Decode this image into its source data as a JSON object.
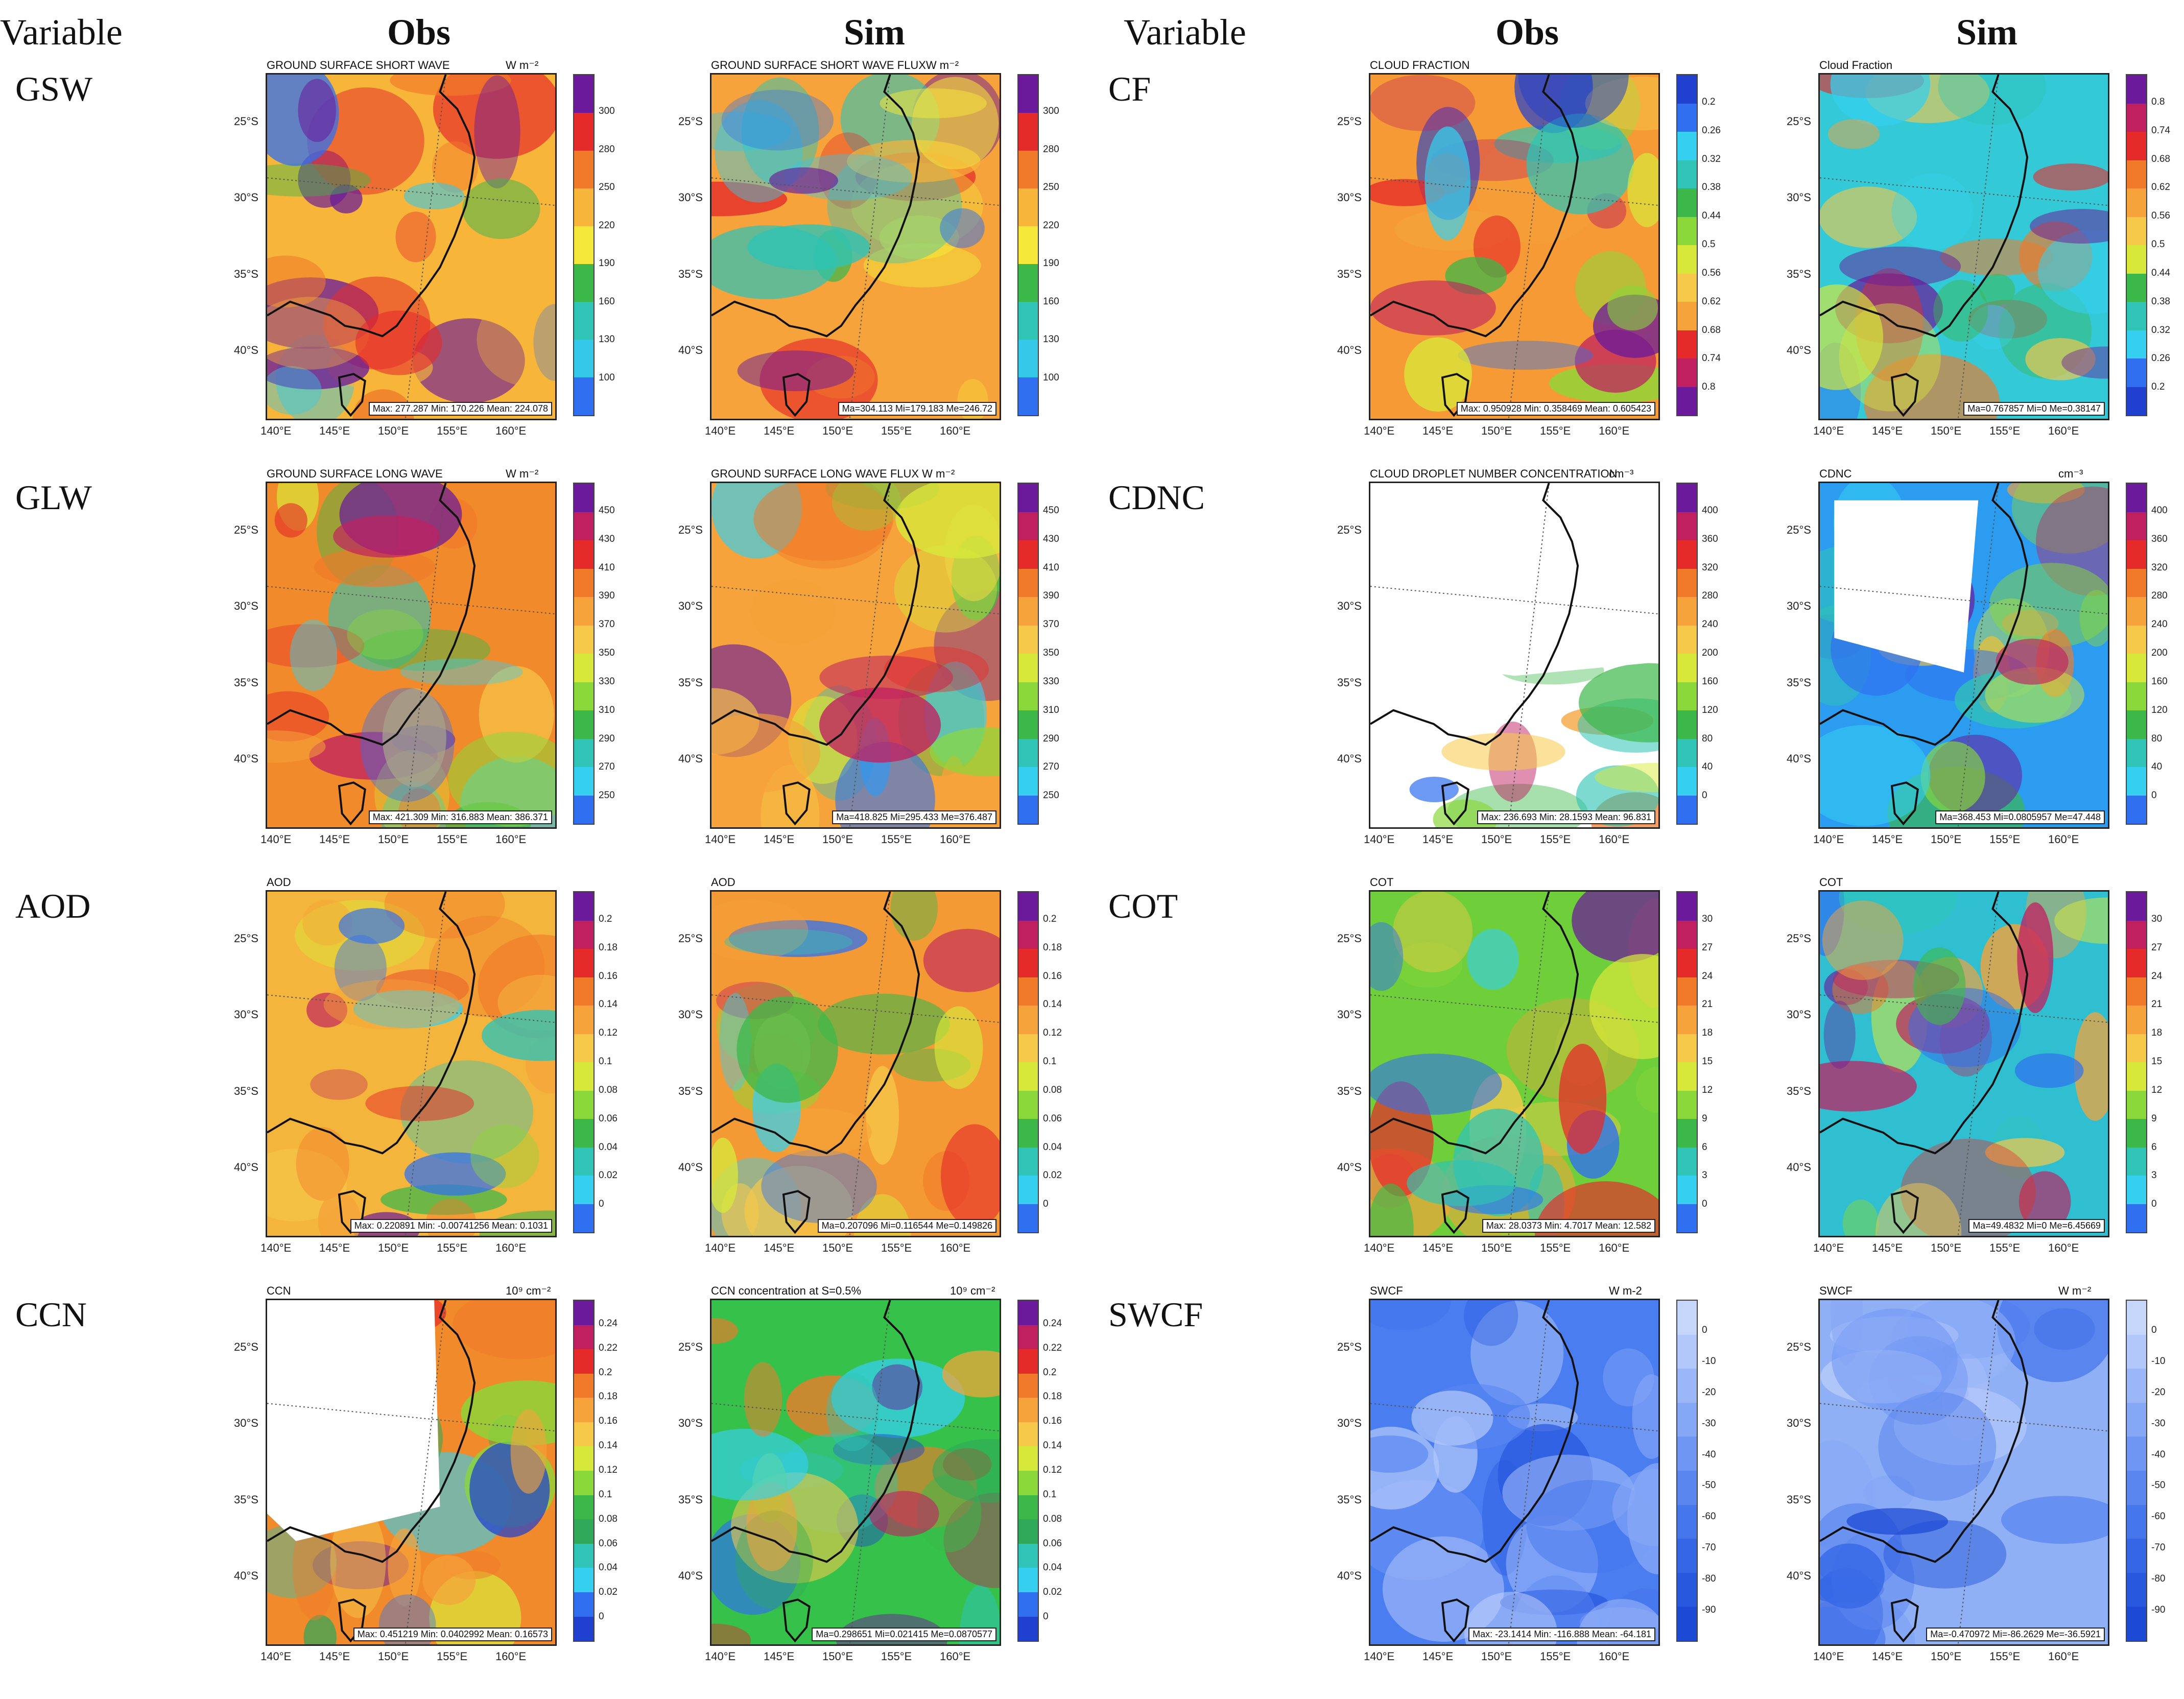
{
  "header": {
    "variable_left": "Variable",
    "obs_left": "Obs",
    "sim_left": "Sim",
    "variable_right": "Variable",
    "obs_right": "Obs",
    "sim_right": "Sim"
  },
  "lon_ticks": [
    "140°E",
    "145°E",
    "150°E",
    "155°E",
    "160°E"
  ],
  "lat_ticks": [
    "25°S",
    "30°S",
    "35°S",
    "40°S"
  ],
  "rows_left": [
    {
      "label": "GSW",
      "obs": {
        "title": "GROUND SURFACE SHORT WAVE",
        "unit": "W m⁻²",
        "stats": "Max: 277.287  Min: 170.226  Mean: 224.078",
        "palette": "gsw",
        "bg": "#f7b53a"
      },
      "sim": {
        "title": "GROUND SURFACE SHORT WAVE FLUXW m⁻²",
        "unit": "",
        "stats": "Ma=304.113 Mi=179.183 Me=246.72",
        "palette": "gsw",
        "bg": "#f5a33a"
      },
      "cbar": [
        "300",
        "280",
        "250",
        "220",
        "190",
        "160",
        "130",
        "100"
      ]
    },
    {
      "label": "GLW",
      "obs": {
        "title": "GROUND SURFACE LONG WAVE",
        "unit": "W m⁻²",
        "stats": "Max: 421.309  Min: 316.883  Mean: 386.371",
        "palette": "glw",
        "bg": "#f08a2a"
      },
      "sim": {
        "title": "GROUND SURFACE LONG WAVE FLUX   W m⁻²",
        "unit": "",
        "stats": "Ma=418.825 Mi=295.433 Me=376.487",
        "palette": "glw",
        "bg": "#f5a33a"
      },
      "cbar": [
        "450",
        "430",
        "410",
        "390",
        "370",
        "350",
        "330",
        "310",
        "290",
        "270",
        "250"
      ]
    },
    {
      "label": "AOD",
      "obs": {
        "title": "AOD",
        "unit": "",
        "stats": "Max: 0.220891  Min: -0.00741256  Mean: 0.1031",
        "palette": "aod",
        "bg": "#f4b53c"
      },
      "sim": {
        "title": "AOD",
        "unit": "",
        "stats": "Ma=0.207096 Mi=0.116544 Me=0.149826",
        "palette": "aod",
        "bg": "#f49a34"
      },
      "cbar": [
        "0.2",
        "0.18",
        "0.16",
        "0.14",
        "0.12",
        "0.1",
        "0.08",
        "0.06",
        "0.04",
        "0.02",
        "0"
      ]
    },
    {
      "label": "CCN",
      "obs": {
        "title": "CCN",
        "unit": "10⁹ cm⁻²",
        "stats": "Max: 0.451219  Min: 0.0402992  Mean: 0.16573",
        "palette": "ccn",
        "bg": "#f08a2a"
      },
      "sim": {
        "title": "CCN concentration at S=0.5%",
        "unit": "10⁹ cm⁻²",
        "stats": "Ma=0.298651 Mi=0.021415 Me=0.0870577",
        "palette": "ccn",
        "bg": "#36c24a"
      },
      "cbar": [
        "0.24",
        "0.22",
        "0.2",
        "0.18",
        "0.16",
        "0.14",
        "0.12",
        "0.1",
        "0.08",
        "0.06",
        "0.04",
        "0.02",
        "0"
      ]
    }
  ],
  "rows_right": [
    {
      "label": "CF",
      "obs": {
        "title": "CLOUD FRACTION",
        "unit": "",
        "stats": "Max: 0.950928  Min: 0.358469  Mean: 0.605423",
        "palette": "cf_obs",
        "bg": "#f59a34"
      },
      "sim": {
        "title": "Cloud Fraction",
        "unit": "",
        "stats": "Ma=0.767857 Mi=0 Me=0.38147",
        "palette": "cf",
        "bg": "#33c9d6"
      },
      "cbar_obs": [
        "0.2",
        "0.26",
        "0.32",
        "0.38",
        "0.44",
        "0.5",
        "0.56",
        "0.62",
        "0.68",
        "0.74",
        "0.8"
      ],
      "cbar": [
        "0.8",
        "0.74",
        "0.68",
        "0.62",
        "0.56",
        "0.5",
        "0.44",
        "0.38",
        "0.32",
        "0.26",
        "0.2"
      ]
    },
    {
      "label": "CDNC",
      "obs": {
        "title": "CLOUD DROPLET NUMBER CONCENTRATION",
        "unit": "cm⁻³",
        "stats": "Max: 236.693  Min: 28.1593  Mean: 96.831",
        "palette": "cdnc",
        "bg": "#ffffff"
      },
      "sim": {
        "title": "CDNC",
        "unit": "cm⁻³",
        "stats": "Ma=368.453 Mi=0.0805957 Me=47.448",
        "palette": "cdnc",
        "bg": "#2b9cf0"
      },
      "cbar": [
        "400",
        "360",
        "320",
        "280",
        "240",
        "200",
        "160",
        "120",
        "80",
        "40",
        "0"
      ]
    },
    {
      "label": "COT",
      "obs": {
        "title": "COT",
        "unit": "",
        "stats": "Max: 28.0373  Min: 4.7017  Mean: 12.582",
        "palette": "cot",
        "bg": "#6fcf3a"
      },
      "sim": {
        "title": "COT",
        "unit": "",
        "stats": "Ma=49.4832 Mi=0 Me=6.45669",
        "palette": "cot",
        "bg": "#2fbfd0"
      },
      "cbar": [
        "30",
        "27",
        "24",
        "21",
        "18",
        "15",
        "12",
        "9",
        "6",
        "3",
        "0"
      ]
    },
    {
      "label": "SWCF",
      "obs": {
        "title": "SWCF",
        "unit": "W m-2",
        "stats": "Max: -23.1414  Min: -116.888  Mean: -64.181",
        "palette": "swcf",
        "bg": "#4a7ef0"
      },
      "sim": {
        "title": "SWCF",
        "unit": "W m⁻²",
        "stats": "Ma=-0.470972 Mi=-86.2629 Me=-36.5921",
        "palette": "swcf",
        "bg": "#8fb0f5"
      },
      "cbar": [
        "0",
        "-10",
        "-20",
        "-30",
        "-40",
        "-50",
        "-60",
        "-70",
        "-80",
        "-90"
      ]
    }
  ],
  "palettes": {
    "gsw": [
      "#6a1a9a",
      "#e52a2a",
      "#f07a2a",
      "#f7b53a",
      "#f5e83a",
      "#3cb84a",
      "#2fc4b5",
      "#35c8e8",
      "#3070f0"
    ],
    "glw": [
      "#6a1a9a",
      "#c02060",
      "#e52a2a",
      "#f07a2a",
      "#f5a33a",
      "#f7c94a",
      "#d8e83a",
      "#8ad83a",
      "#3cb84a",
      "#2fc4b5",
      "#35d0f0",
      "#3070f0"
    ],
    "aod": [
      "#6a1a9a",
      "#c02060",
      "#e52a2a",
      "#f07a2a",
      "#f5a33a",
      "#f7c94a",
      "#d8e83a",
      "#8ad83a",
      "#3cb84a",
      "#2fc4b5",
      "#35d0f0",
      "#3070f0"
    ],
    "ccn": [
      "#6a1a9a",
      "#c02060",
      "#e52a2a",
      "#f07a2a",
      "#f5a33a",
      "#f7c94a",
      "#d8e83a",
      "#8ad83a",
      "#3cb84a",
      "#2fa85a",
      "#2fc4b5",
      "#35d0f0",
      "#3070f0",
      "#2040d0"
    ],
    "cf_obs": [
      "#2040d0",
      "#3070f0",
      "#35d0f0",
      "#2fc4b5",
      "#3cb84a",
      "#8ad83a",
      "#d8e83a",
      "#f7c94a",
      "#f5a33a",
      "#e52a2a",
      "#c02060",
      "#6a1a9a"
    ],
    "cf": [
      "#6a1a9a",
      "#c02060",
      "#e52a2a",
      "#f07a2a",
      "#f5a33a",
      "#f7c94a",
      "#d8e83a",
      "#3cb84a",
      "#2fc4b5",
      "#35d0f0",
      "#3070f0",
      "#2040d0"
    ],
    "cdnc": [
      "#6a1a9a",
      "#c02060",
      "#e52a2a",
      "#f07a2a",
      "#f5a33a",
      "#f7c94a",
      "#d8e83a",
      "#8ad83a",
      "#3cb84a",
      "#2fc4b5",
      "#35d0f0",
      "#3070f0"
    ],
    "cot": [
      "#6a1a9a",
      "#c02060",
      "#e52a2a",
      "#f07a2a",
      "#f5a33a",
      "#f7c94a",
      "#d8e83a",
      "#8ad83a",
      "#3cb84a",
      "#2fc4b5",
      "#35d0f0",
      "#3070f0"
    ],
    "swcf": [
      "#c6d6fb",
      "#b2c7fa",
      "#9cb7f8",
      "#86a7f6",
      "#6f96f3",
      "#5a86f0",
      "#4676ec",
      "#3566e6",
      "#2858de",
      "#1c4ad4"
    ]
  }
}
